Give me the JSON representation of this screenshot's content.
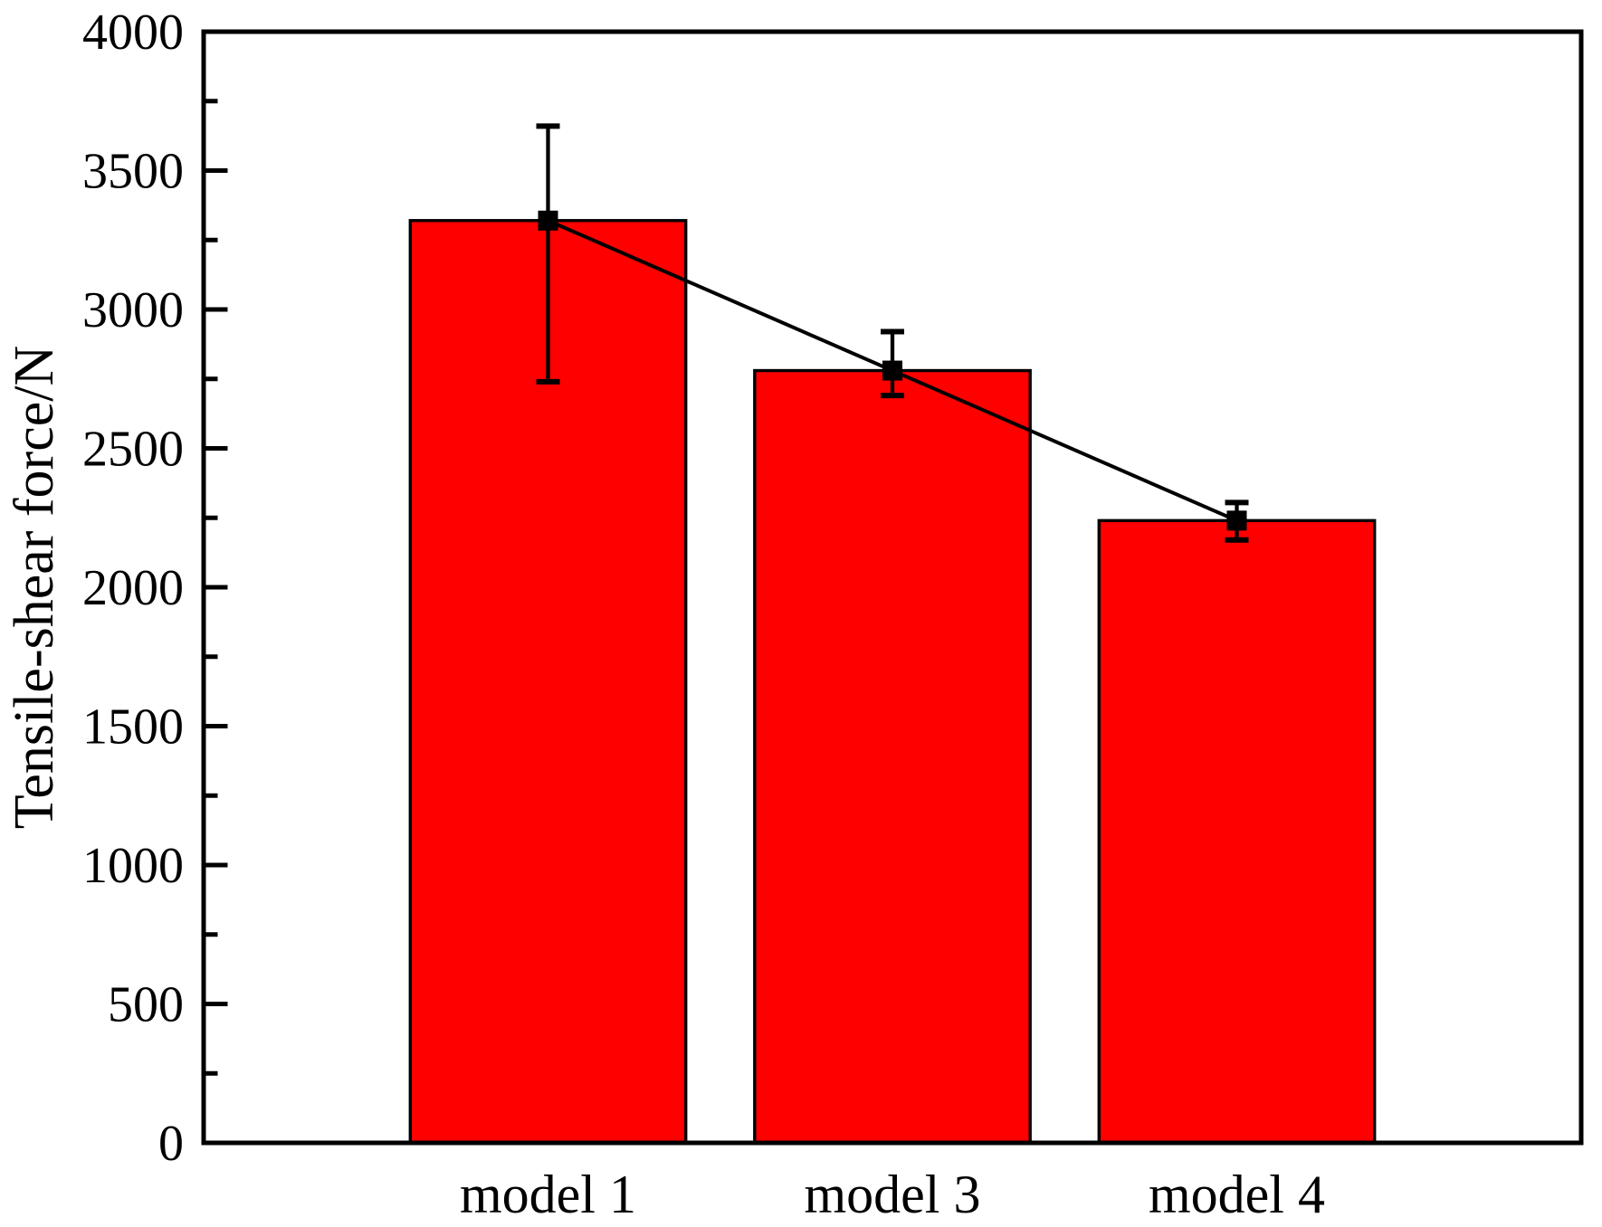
{
  "chart_data": {
    "type": "bar",
    "title": "",
    "ylabel": "Tensile-shear force/N",
    "xlabel": "",
    "categories": [
      "model 1",
      "model 3",
      "model 4"
    ],
    "values": [
      3320,
      2780,
      2240
    ],
    "error_upper": [
      3660,
      2920,
      2305
    ],
    "error_lower": [
      2740,
      2690,
      2170
    ],
    "overlay_line": {
      "type": "line",
      "marker": "filled-square",
      "y": [
        3320,
        2780,
        2240
      ]
    },
    "ylim": [
      0,
      4000
    ],
    "y_major_step": 500,
    "y_minor_step": 250,
    "yticks": [
      "0",
      "500",
      "1000",
      "1500",
      "2000",
      "2500",
      "3000",
      "3500",
      "4000"
    ],
    "grid": false,
    "legend": "none",
    "colors": {
      "bar": "#ff0000",
      "bar_edge": "#000000",
      "error_bar": "#000000",
      "marker": "#000000",
      "line": "#000000",
      "axis": "#000000",
      "background": "#ffffff"
    }
  }
}
